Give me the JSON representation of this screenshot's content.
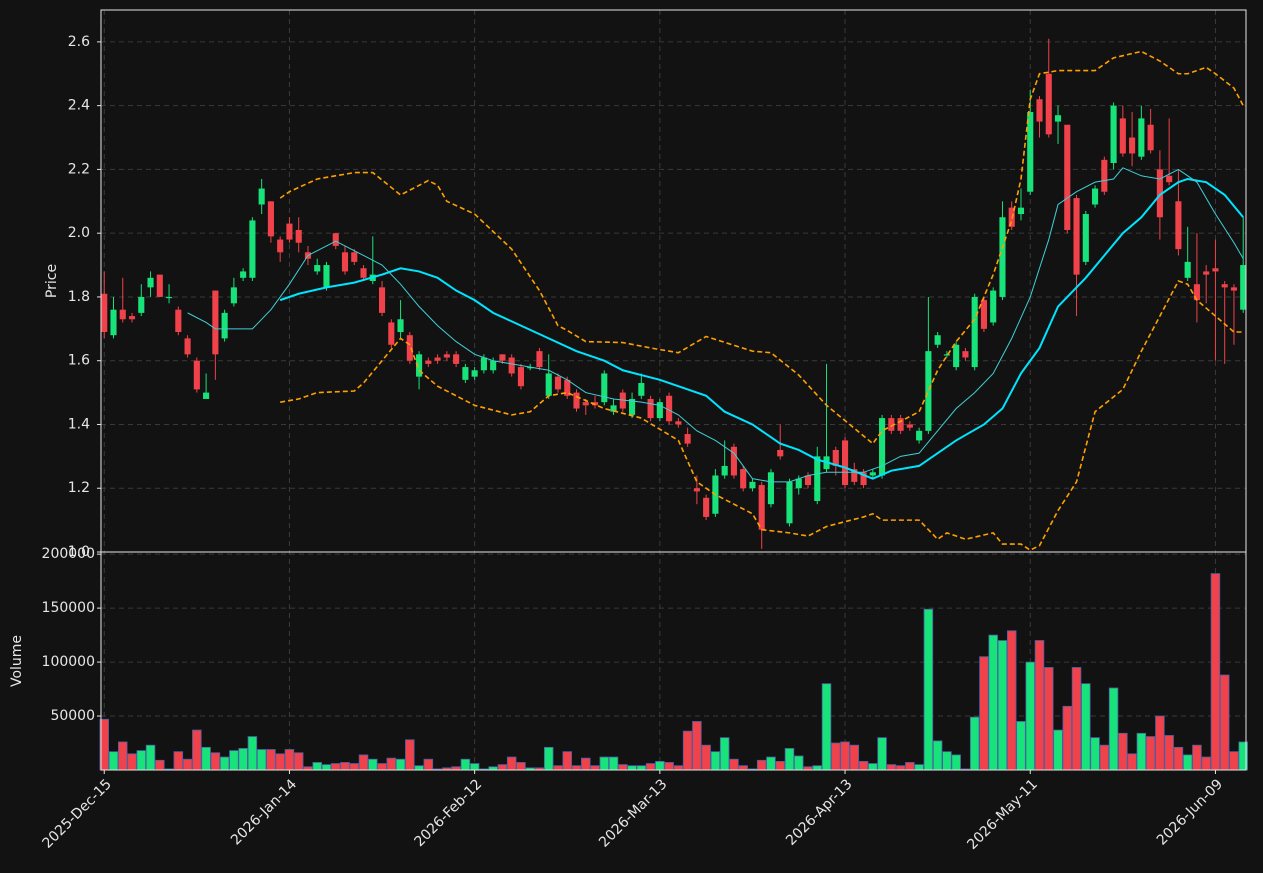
{
  "chart_data": [
    {
      "type": "candlestick",
      "ylabel": "Price",
      "up_color": "#18e27a",
      "down_color": "#f0424a",
      "grid": true,
      "xlim": [
        -0.35,
        123.3
      ],
      "ylim": [
        1.0,
        2.7
      ],
      "yticks": [
        {
          "value": 1,
          "label": "1.0"
        },
        1.2,
        1.4,
        1.6,
        1.8,
        {
          "value": 2,
          "label": "2.0"
        },
        2.2,
        2.4,
        2.6
      ],
      "open": [
        1.81,
        1.68,
        1.76,
        1.74,
        1.75,
        1.83,
        1.87,
        1.8,
        1.76,
        1.67,
        1.6,
        1.48,
        1.82,
        1.67,
        1.78,
        1.86,
        1.86,
        2.09,
        2.1,
        1.98,
        2.03,
        2.01,
        1.94,
        1.88,
        1.83,
        2.0,
        1.94,
        1.94,
        1.89,
        1.85,
        1.83,
        1.72,
        1.69,
        1.68,
        1.55,
        1.6,
        1.61,
        1.62,
        1.62,
        1.54,
        1.55,
        1.57,
        1.57,
        1.62,
        1.61,
        1.58,
        1.58,
        1.63,
        1.49,
        1.55,
        1.54,
        1.5,
        1.47,
        1.47,
        1.47,
        1.44,
        1.5,
        1.43,
        1.49,
        1.48,
        1.42,
        1.49,
        1.41,
        1.37,
        1.2,
        1.17,
        1.12,
        1.24,
        1.33,
        1.26,
        1.2,
        1.21,
        1.15,
        1.32,
        1.09,
        1.2,
        1.24,
        1.16,
        1.26,
        1.32,
        1.35,
        1.26,
        1.25,
        1.24,
        1.24,
        1.42,
        1.42,
        1.4,
        1.35,
        1.38,
        1.65,
        1.62,
        1.58,
        1.63,
        1.58,
        1.79,
        1.72,
        1.8,
        2.08,
        2.06,
        2.13,
        2.42,
        2.5,
        2.35,
        2.34,
        2.11,
        1.91,
        2.09,
        2.23,
        2.22,
        2.36,
        2.3,
        2.24,
        2.34,
        2.2,
        2.18,
        2.1,
        1.86,
        1.84,
        1.88,
        1.89,
        1.84,
        1.83,
        1.76
      ],
      "high": [
        1.88,
        1.8,
        1.86,
        1.75,
        1.84,
        1.88,
        1.87,
        1.84,
        1.77,
        1.68,
        1.61,
        1.56,
        1.82,
        1.76,
        1.86,
        1.89,
        2.05,
        2.17,
        2.1,
        1.99,
        2.05,
        2.05,
        1.96,
        1.92,
        1.91,
        2.0,
        1.96,
        1.95,
        1.9,
        1.99,
        1.85,
        1.73,
        1.79,
        1.69,
        1.63,
        1.61,
        1.62,
        1.63,
        1.63,
        1.59,
        1.58,
        1.62,
        1.61,
        1.62,
        1.62,
        1.59,
        1.59,
        1.64,
        1.62,
        1.56,
        1.55,
        1.51,
        1.48,
        1.49,
        1.57,
        1.48,
        1.51,
        1.5,
        1.56,
        1.49,
        1.48,
        1.5,
        1.42,
        1.39,
        1.24,
        1.18,
        1.26,
        1.35,
        1.34,
        1.27,
        1.23,
        1.22,
        1.26,
        1.4,
        1.23,
        1.24,
        1.25,
        1.33,
        1.59,
        1.33,
        1.36,
        1.28,
        1.26,
        1.26,
        1.43,
        1.43,
        1.43,
        1.41,
        1.39,
        1.8,
        1.69,
        1.63,
        1.66,
        1.64,
        1.81,
        1.8,
        1.83,
        2.1,
        2.1,
        2.14,
        2.45,
        2.43,
        2.61,
        2.4,
        2.34,
        2.12,
        2.07,
        2.15,
        2.24,
        2.41,
        2.4,
        2.38,
        2.4,
        2.39,
        2.26,
        2.36,
        2.2,
        2.02,
        2.0,
        1.9,
        1.98,
        1.85,
        1.84,
        2.05
      ],
      "low": [
        1.67,
        1.67,
        1.72,
        1.72,
        1.74,
        1.8,
        1.8,
        1.78,
        1.68,
        1.61,
        1.5,
        1.48,
        1.54,
        1.66,
        1.77,
        1.85,
        1.85,
        2.06,
        1.97,
        1.91,
        1.97,
        1.94,
        1.9,
        1.87,
        1.82,
        1.95,
        1.87,
        1.9,
        1.85,
        1.84,
        1.74,
        1.64,
        1.67,
        1.59,
        1.51,
        1.58,
        1.59,
        1.6,
        1.58,
        1.53,
        1.54,
        1.56,
        1.56,
        1.59,
        1.55,
        1.51,
        1.57,
        1.57,
        1.48,
        1.5,
        1.48,
        1.44,
        1.43,
        1.45,
        1.46,
        1.43,
        1.44,
        1.42,
        1.48,
        1.41,
        1.41,
        1.4,
        1.39,
        1.33,
        1.15,
        1.1,
        1.11,
        1.23,
        1.23,
        1.19,
        1.19,
        1.01,
        1.14,
        1.29,
        1.08,
        1.18,
        1.2,
        1.15,
        1.25,
        1.24,
        1.2,
        1.21,
        1.2,
        1.23,
        1.23,
        1.37,
        1.37,
        1.38,
        1.34,
        1.37,
        1.64,
        1.61,
        1.57,
        1.6,
        1.57,
        1.69,
        1.71,
        1.79,
        2.01,
        2.04,
        2.12,
        2.3,
        2.3,
        2.28,
        2.0,
        1.74,
        1.9,
        2.08,
        2.12,
        2.2,
        2.24,
        2.21,
        2.23,
        2.25,
        1.98,
        2.15,
        1.93,
        1.85,
        1.72,
        1.78,
        1.6,
        1.59,
        1.65,
        1.75
      ],
      "close": [
        1.69,
        1.76,
        1.73,
        1.73,
        1.8,
        1.86,
        1.8,
        1.8,
        1.69,
        1.62,
        1.51,
        1.5,
        1.62,
        1.75,
        1.83,
        1.88,
        2.04,
        2.14,
        1.99,
        1.94,
        1.98,
        1.97,
        1.92,
        1.9,
        1.9,
        1.96,
        1.88,
        1.91,
        1.86,
        1.87,
        1.75,
        1.65,
        1.73,
        1.6,
        1.62,
        1.59,
        1.6,
        1.61,
        1.59,
        1.58,
        1.57,
        1.61,
        1.6,
        1.6,
        1.56,
        1.52,
        1.58,
        1.58,
        1.56,
        1.51,
        1.49,
        1.45,
        1.46,
        1.46,
        1.56,
        1.46,
        1.45,
        1.48,
        1.53,
        1.42,
        1.47,
        1.41,
        1.4,
        1.34,
        1.19,
        1.11,
        1.24,
        1.27,
        1.24,
        1.2,
        1.22,
        1.07,
        1.25,
        1.3,
        1.22,
        1.23,
        1.21,
        1.3,
        1.3,
        1.27,
        1.21,
        1.22,
        1.21,
        1.25,
        1.42,
        1.38,
        1.38,
        1.39,
        1.38,
        1.63,
        1.68,
        1.62,
        1.65,
        1.61,
        1.8,
        1.7,
        1.82,
        2.05,
        2.02,
        2.08,
        2.38,
        2.35,
        2.31,
        2.37,
        2.01,
        1.87,
        2.06,
        2.14,
        2.13,
        2.4,
        2.25,
        2.25,
        2.36,
        2.26,
        2.05,
        2.16,
        1.95,
        1.91,
        1.79,
        1.87,
        1.88,
        1.83,
        1.82,
        1.9
      ],
      "lines": [
        {
          "color": "#00e5ff",
          "dashed": false,
          "x": [
            19,
            21,
            24,
            27,
            30,
            32,
            34,
            36,
            38,
            40,
            42,
            45,
            48,
            51,
            54,
            56,
            58,
            60,
            62,
            65,
            67,
            70,
            73,
            75,
            77,
            80,
            83,
            85,
            88,
            90,
            92,
            95,
            97,
            99,
            101,
            103,
            104,
            106,
            108,
            110,
            112,
            114,
            116,
            117,
            119,
            121,
            123
          ],
          "values": [
            1.79,
            1.81,
            1.83,
            1.845,
            1.87,
            1.89,
            1.88,
            1.86,
            1.82,
            1.79,
            1.75,
            1.71,
            1.67,
            1.63,
            1.6,
            1.57,
            1.555,
            1.54,
            1.52,
            1.49,
            1.44,
            1.4,
            1.34,
            1.32,
            1.29,
            1.265,
            1.23,
            1.255,
            1.27,
            1.31,
            1.35,
            1.4,
            1.45,
            1.56,
            1.64,
            1.77,
            1.8,
            1.86,
            1.93,
            2.0,
            2.05,
            2.12,
            2.16,
            2.17,
            2.16,
            2.12,
            2.05
          ]
        },
        {
          "color": "#3fd0d8",
          "dashed": false,
          "x": [
            9,
            11,
            12,
            14,
            16,
            18,
            20,
            22,
            24,
            25,
            26,
            28,
            30,
            32,
            34,
            36,
            38,
            40,
            42,
            45,
            48,
            50,
            52,
            55,
            58,
            60,
            62,
            64,
            66,
            68,
            70,
            72,
            74,
            76,
            78,
            80,
            82,
            84,
            86,
            88,
            90,
            92,
            94,
            96,
            98,
            100,
            102,
            103,
            105,
            107,
            109,
            110,
            112,
            114,
            116,
            118,
            120,
            122,
            123
          ],
          "values": [
            1.75,
            1.72,
            1.7,
            1.7,
            1.7,
            1.76,
            1.84,
            1.93,
            1.96,
            1.975,
            1.96,
            1.93,
            1.9,
            1.84,
            1.77,
            1.71,
            1.66,
            1.62,
            1.6,
            1.585,
            1.57,
            1.54,
            1.5,
            1.48,
            1.47,
            1.46,
            1.43,
            1.38,
            1.35,
            1.31,
            1.23,
            1.22,
            1.22,
            1.24,
            1.25,
            1.25,
            1.25,
            1.27,
            1.3,
            1.31,
            1.38,
            1.45,
            1.5,
            1.56,
            1.67,
            1.8,
            1.98,
            2.09,
            2.13,
            2.16,
            2.17,
            2.205,
            2.18,
            2.17,
            2.2,
            2.16,
            2.06,
            1.97,
            1.92
          ]
        },
        {
          "color": "#ffa000",
          "dashed": true,
          "x": [
            19,
            20,
            23,
            27,
            29,
            32,
            35,
            36,
            37,
            40,
            44,
            47,
            49,
            50,
            52,
            56,
            59,
            62,
            65,
            70,
            72,
            75,
            78,
            83,
            84,
            86,
            88,
            90,
            92,
            94,
            96,
            98,
            99,
            100,
            101,
            103,
            107,
            109,
            112,
            114,
            116,
            117,
            119,
            120,
            122,
            123
          ],
          "values": [
            2.11,
            2.13,
            2.17,
            2.19,
            2.19,
            2.12,
            2.165,
            2.15,
            2.1,
            2.06,
            1.95,
            1.82,
            1.71,
            1.695,
            1.66,
            1.657,
            1.64,
            1.625,
            1.676,
            1.63,
            1.625,
            1.555,
            1.46,
            1.34,
            1.38,
            1.41,
            1.44,
            1.57,
            1.66,
            1.73,
            1.87,
            2.04,
            2.17,
            2.42,
            2.5,
            2.51,
            2.51,
            2.55,
            2.57,
            2.54,
            2.5,
            2.5,
            2.52,
            2.5,
            2.455,
            2.4
          ]
        },
        {
          "color": "#ffa000",
          "dashed": true,
          "x": [
            19,
            21,
            23,
            27,
            28,
            30,
            32,
            33,
            34,
            36,
            40,
            44,
            46,
            48,
            50,
            54,
            58,
            62,
            64,
            66,
            70,
            71,
            74,
            76,
            78,
            82,
            83,
            84,
            88,
            90,
            91,
            93,
            96,
            97,
            99,
            100,
            101,
            103,
            105,
            107,
            110,
            112,
            114,
            116,
            117,
            118,
            120,
            122,
            123
          ],
          "values": [
            1.47,
            1.48,
            1.5,
            1.505,
            1.53,
            1.6,
            1.67,
            1.65,
            1.57,
            1.52,
            1.46,
            1.43,
            1.44,
            1.49,
            1.5,
            1.45,
            1.42,
            1.35,
            1.22,
            1.18,
            1.12,
            1.07,
            1.06,
            1.05,
            1.08,
            1.11,
            1.12,
            1.1,
            1.1,
            1.04,
            1.06,
            1.04,
            1.06,
            1.025,
            1.025,
            1.006,
            1.02,
            1.13,
            1.22,
            1.44,
            1.51,
            1.63,
            1.74,
            1.85,
            1.84,
            1.79,
            1.74,
            1.69,
            1.69
          ]
        }
      ]
    },
    {
      "type": "bar",
      "ylabel": "Volume",
      "grid": true,
      "xlim": [
        -0.35,
        123.3
      ],
      "ylim": [
        0,
        202000
      ],
      "yticks": [
        50000,
        100000,
        150000,
        200000
      ],
      "categories": [
        "2025-Dec-15",
        null,
        null,
        null,
        null,
        null,
        null,
        null,
        null,
        null,
        null,
        null,
        null,
        null,
        null,
        null,
        null,
        null,
        null,
        null,
        "2026-Jan-14",
        null,
        null,
        null,
        null,
        null,
        null,
        null,
        null,
        null,
        null,
        null,
        null,
        null,
        null,
        null,
        null,
        null,
        null,
        null,
        "2026-Feb-12",
        null,
        null,
        null,
        null,
        null,
        null,
        null,
        null,
        null,
        null,
        null,
        null,
        null,
        null,
        null,
        null,
        null,
        null,
        null,
        "2026-Mar-13",
        null,
        null,
        null,
        null,
        null,
        null,
        null,
        null,
        null,
        null,
        null,
        null,
        null,
        null,
        null,
        null,
        null,
        null,
        null,
        "2026-Apr-13",
        null,
        null,
        null,
        null,
        null,
        null,
        null,
        null,
        null,
        null,
        null,
        null,
        null,
        null,
        null,
        null,
        null,
        null,
        null,
        "2026-May-11",
        null,
        null,
        null,
        null,
        null,
        null,
        null,
        null,
        null,
        null,
        null,
        null,
        null,
        null,
        null,
        null,
        null,
        null,
        null,
        "2026-Jun-09",
        null,
        null,
        null
      ],
      "values": [
        47000,
        17000,
        26000,
        15000,
        18000,
        23000,
        9000,
        1000,
        17000,
        10000,
        37000,
        21000,
        16000,
        12000,
        18000,
        20000,
        31000,
        19000,
        19000,
        15000,
        19000,
        16000,
        3000,
        7000,
        5000,
        6000,
        7000,
        6000,
        14000,
        10000,
        6000,
        11000,
        10000,
        28000,
        4000,
        10000,
        1000,
        2000,
        3000,
        10000,
        6000,
        1000,
        3000,
        5000,
        12000,
        7000,
        2000,
        2000,
        21000,
        4000,
        17000,
        4000,
        11000,
        4000,
        12000,
        12000,
        5000,
        4000,
        4000,
        6000,
        8000,
        7000,
        4000,
        36000,
        45000,
        23000,
        17000,
        30000,
        10000,
        4000,
        1000,
        9000,
        12000,
        8000,
        20000,
        13000,
        3000,
        4000,
        80000,
        25000,
        26000,
        23000,
        8000,
        6000,
        30000,
        5000,
        4000,
        7000,
        5000,
        149000,
        27000,
        17000,
        14000,
        1000,
        49000,
        105000,
        125000,
        120000,
        129000,
        45000,
        100000,
        120000,
        95000,
        37000,
        59000,
        95000,
        80000,
        30000,
        23000,
        76000,
        34000,
        15000,
        34000,
        31000,
        50000,
        32000,
        21000,
        14000,
        23000,
        12000,
        182000,
        88000,
        17000,
        26000
      ]
    }
  ]
}
